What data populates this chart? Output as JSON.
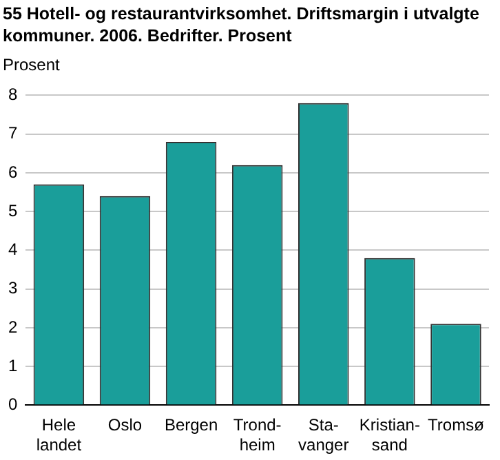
{
  "chart_data": {
    "type": "bar",
    "title": "55 Hotell- og restaurantvirksomhet. Driftsmargin i utvalgte kommuner. 2006. Bedrifter. Prosent",
    "ylabel": "Prosent",
    "categories": [
      "Hele\nlandet",
      "Oslo",
      "Bergen",
      "Trond-\nheim",
      "Sta-\nvanger",
      "Kristian-\nsand",
      "Tromsø"
    ],
    "values": [
      5.7,
      5.4,
      6.8,
      6.2,
      7.8,
      3.8,
      2.1
    ],
    "color": "#1a9e9a",
    "ylim": [
      0,
      8
    ],
    "yticks": [
      0,
      1,
      2,
      3,
      4,
      5,
      6,
      7,
      8
    ],
    "grid": "y"
  }
}
